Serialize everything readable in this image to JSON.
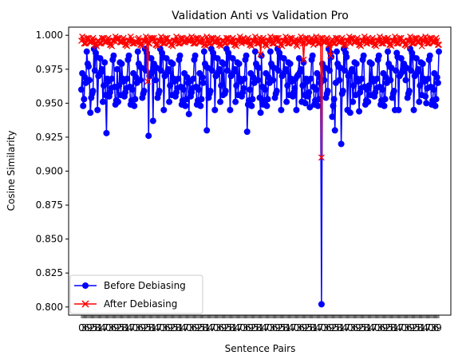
{
  "chart_data": {
    "type": "line",
    "title": "Validation Anti vs Validation Pro",
    "xlabel": "Sentence Pairs",
    "ylabel": "Cosine Similarity",
    "ylim": [
      0.794,
      1.006
    ],
    "yticks": [
      "0.800",
      "0.825",
      "0.850",
      "0.875",
      "0.900",
      "0.925",
      "0.950",
      "0.975",
      "1.000"
    ],
    "grid": false,
    "legend": "lower-left",
    "n_points": 400,
    "series": [
      {
        "name": "Before Debiasing",
        "color": "#0000ff",
        "marker": "circle",
        "base_values": [
          0.96,
          0.975,
          0.988,
          0.968,
          0.957,
          0.982,
          0.945,
          0.972,
          0.951,
          0.979,
          0.966,
          0.959,
          0.985,
          0.97,
          0.948,
          0.963,
          0.977,
          0.955,
          0.99,
          0.962,
          0.971,
          0.953,
          0.98,
          0.967,
          0.958,
          0.974,
          0.949,
          0.983,
          0.969,
          0.956,
          0.976,
          0.961,
          0.987,
          0.952,
          0.973,
          0.965,
          0.979,
          0.954,
          0.968,
          0.984
        ],
        "spikes": [
          [
            10,
            0.943
          ],
          [
            28,
            0.928
          ],
          [
            75,
            0.926
          ],
          [
            80,
            0.937
          ],
          [
            120,
            0.942
          ],
          [
            140,
            0.93
          ],
          [
            185,
            0.929
          ],
          [
            200,
            0.943
          ],
          [
            250,
            0.95
          ],
          [
            255,
            0.947
          ],
          [
            268,
            0.802
          ],
          [
            280,
            0.94
          ],
          [
            283,
            0.93
          ],
          [
            290,
            0.92
          ],
          [
            300,
            0.943
          ],
          [
            310,
            0.944
          ],
          [
            350,
            0.945
          ],
          [
            385,
            0.95
          ]
        ]
      },
      {
        "name": "After Debiasing",
        "color": "#ff0000",
        "marker": "x",
        "base_values": [
          0.996,
          0.994,
          0.998,
          0.995,
          0.997,
          0.993,
          0.996,
          0.999,
          0.994,
          0.997,
          0.995,
          0.998,
          0.993,
          0.996,
          0.997,
          0.994,
          0.998,
          0.995,
          0.996,
          0.992
        ],
        "spikes": [
          [
            74,
            0.966
          ],
          [
            200,
            0.986
          ],
          [
            248,
            0.982
          ],
          [
            268,
            0.91
          ],
          [
            278,
            0.985
          ]
        ]
      }
    ]
  }
}
